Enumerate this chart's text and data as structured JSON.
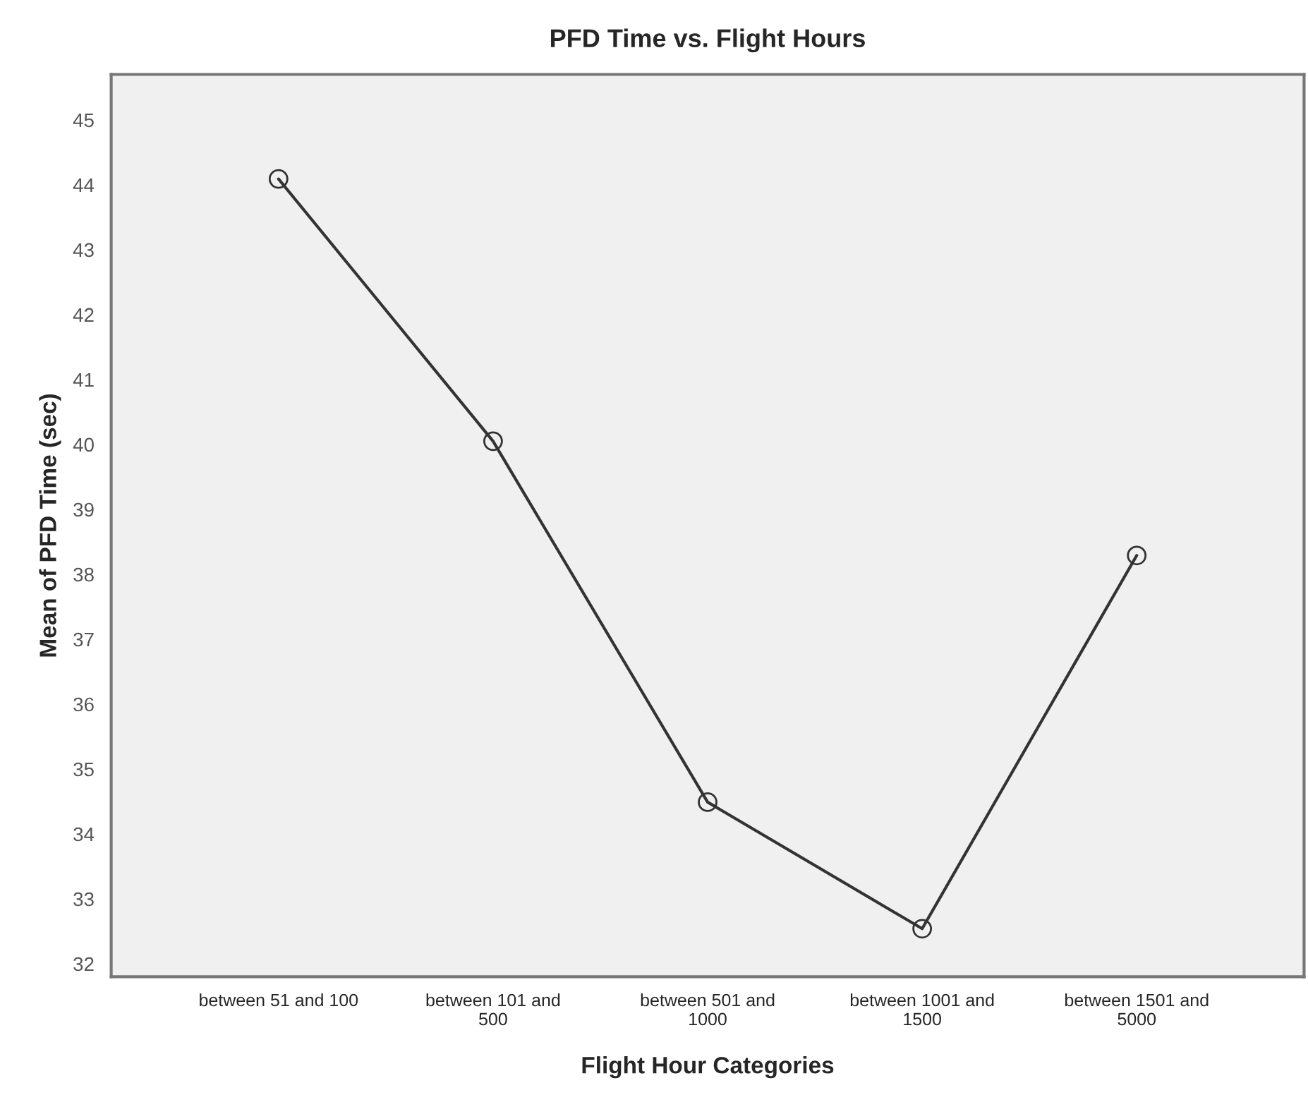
{
  "chart_data": {
    "type": "line",
    "title": "PFD Time vs. Flight Hours",
    "xlabel": "Flight Hour Categories",
    "ylabel": "Mean of PFD Time (sec)",
    "categories": [
      "between 51 and 100",
      "between 101 and\n500",
      "between 501 and\n1000",
      "between 1001 and\n1500",
      "between 1501 and\n5000"
    ],
    "series": [
      {
        "color": "#333333",
        "values": [
          44.09,
          40.05,
          34.49,
          32.54,
          38.29
        ]
      }
    ],
    "ylim": [
      31.8,
      45.7
    ],
    "yticks": [
      32,
      33,
      34,
      35,
      36,
      37,
      38,
      39,
      40,
      41,
      42,
      43,
      44,
      45
    ],
    "marker": "circle",
    "line_style": "solid",
    "grid": false,
    "legend": false
  }
}
